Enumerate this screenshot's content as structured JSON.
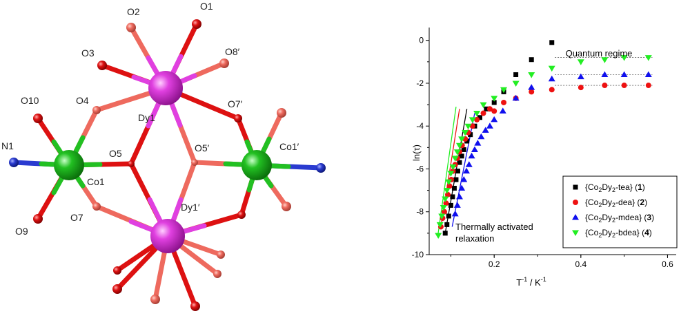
{
  "structure": {
    "labels": [
      {
        "id": "O1",
        "text": "O1"
      },
      {
        "id": "O2",
        "text": "O2"
      },
      {
        "id": "O3",
        "text": "O3"
      },
      {
        "id": "O8p",
        "text": "O8′"
      },
      {
        "id": "O10",
        "text": "O10"
      },
      {
        "id": "O4",
        "text": "O4"
      },
      {
        "id": "Dy1",
        "text": "Dy1"
      },
      {
        "id": "O7p",
        "text": "O7′"
      },
      {
        "id": "N1",
        "text": "N1"
      },
      {
        "id": "O5",
        "text": "O5"
      },
      {
        "id": "O5p",
        "text": "O5′"
      },
      {
        "id": "Co1p",
        "text": "Co1′"
      },
      {
        "id": "Co1",
        "text": "Co1"
      },
      {
        "id": "O7",
        "text": "O7"
      },
      {
        "id": "Dy1p",
        "text": "Dy1′"
      },
      {
        "id": "O9",
        "text": "O9"
      }
    ],
    "colors": {
      "dy": "#e040e0",
      "co": "#20c020",
      "o": "#dd1111",
      "n": "#2a3bd0"
    }
  },
  "chart_data": {
    "type": "scatter",
    "xlabel_main": "T",
    "xlabel_sup1": "-1",
    "xlabel_mid": " / K",
    "xlabel_sup2": "-1",
    "ylabel": "ln(τ)",
    "xlim": [
      0.05,
      0.62
    ],
    "ylim": [
      -10,
      0.6
    ],
    "xticks": [
      0.2,
      0.4,
      0.6
    ],
    "xtick_labels": [
      "0.2",
      "0.4",
      "0.6"
    ],
    "yticks": [
      0,
      -2,
      -4,
      -6,
      -8,
      -10
    ],
    "ytick_labels": [
      "0",
      "-2",
      "-4",
      "-6",
      "-8",
      "-10"
    ],
    "annotations": {
      "quantum": "Quantum regime",
      "thermal_line1": "Thermally activated",
      "thermal_line2": "relaxation"
    },
    "legend_position": "bottom-right",
    "series": [
      {
        "label_pre": "{Co",
        "label_sub1": "2",
        "label_mid": "Dy",
        "label_sub2": "2",
        "label_post": "-tea} (",
        "label_num": "1",
        "label_end": ")",
        "color": "#000000",
        "marker": "square",
        "x": [
          0.087,
          0.091,
          0.095,
          0.1,
          0.104,
          0.108,
          0.112,
          0.116,
          0.12,
          0.125,
          0.13,
          0.137,
          0.145,
          0.155,
          0.167,
          0.182,
          0.2,
          0.222,
          0.25,
          0.286,
          0.333
        ],
        "y": [
          -9.0,
          -8.6,
          -8.2,
          -7.7,
          -7.3,
          -6.9,
          -6.5,
          -6.1,
          -5.7,
          -5.4,
          -5.1,
          -4.7,
          -4.4,
          -4.0,
          -3.6,
          -3.2,
          -2.9,
          -2.4,
          -1.6,
          -0.9,
          -0.1
        ]
      },
      {
        "label_pre": "{Co",
        "label_sub1": "2",
        "label_mid": "Dy",
        "label_sub2": "2",
        "label_post": "-dea} (",
        "label_num": "2",
        "label_end": ")",
        "color": "#ee1111",
        "marker": "circle",
        "x": [
          0.077,
          0.081,
          0.085,
          0.089,
          0.093,
          0.097,
          0.101,
          0.105,
          0.11,
          0.115,
          0.12,
          0.126,
          0.133,
          0.14,
          0.15,
          0.16,
          0.175,
          0.19,
          0.2,
          0.222,
          0.25,
          0.286,
          0.333,
          0.4,
          0.455,
          0.5,
          0.556
        ],
        "y": [
          -8.7,
          -8.3,
          -8.0,
          -7.6,
          -7.2,
          -6.8,
          -6.5,
          -6.1,
          -5.8,
          -5.5,
          -5.2,
          -4.9,
          -4.6,
          -4.3,
          -4.0,
          -3.7,
          -3.4,
          -3.2,
          -3.3,
          -2.9,
          -2.7,
          -2.4,
          -2.3,
          -2.2,
          -2.1,
          -2.1,
          -2.1
        ]
      },
      {
        "label_pre": "{Co",
        "label_sub1": "2",
        "label_mid": "Dy",
        "label_sub2": "2",
        "label_post": "-mdea} (",
        "label_num": "3",
        "label_end": ")",
        "color": "#1010ee",
        "marker": "triangle-up",
        "x": [
          0.11,
          0.115,
          0.12,
          0.125,
          0.13,
          0.136,
          0.142,
          0.148,
          0.155,
          0.162,
          0.17,
          0.18,
          0.19,
          0.2,
          0.22,
          0.25,
          0.286,
          0.333,
          0.4,
          0.455,
          0.5,
          0.556
        ],
        "y": [
          -8.1,
          -7.7,
          -7.3,
          -6.9,
          -6.5,
          -6.1,
          -5.8,
          -5.4,
          -5.1,
          -4.8,
          -4.5,
          -4.2,
          -4.0,
          -3.7,
          -3.3,
          -2.7,
          -2.2,
          -1.8,
          -1.7,
          -1.6,
          -1.6,
          -1.6
        ]
      },
      {
        "label_pre": "{Co",
        "label_sub1": "2",
        "label_mid": "Dy",
        "label_sub2": "2",
        "label_post": "-bdea} (",
        "label_num": "4",
        "label_end": ")",
        "color": "#22ee22",
        "marker": "triangle-down",
        "x": [
          0.071,
          0.075,
          0.079,
          0.083,
          0.087,
          0.091,
          0.095,
          0.1,
          0.105,
          0.11,
          0.115,
          0.12,
          0.125,
          0.133,
          0.14,
          0.15,
          0.16,
          0.175,
          0.2,
          0.222,
          0.25,
          0.286,
          0.333,
          0.4,
          0.455,
          0.5,
          0.556
        ],
        "y": [
          -9.1,
          -8.6,
          -8.2,
          -7.8,
          -7.4,
          -7.0,
          -6.6,
          -6.2,
          -5.9,
          -5.5,
          -5.2,
          -4.9,
          -4.6,
          -4.3,
          -4.0,
          -3.7,
          -3.4,
          -3.0,
          -2.7,
          -2.3,
          -2.0,
          -1.6,
          -1.3,
          -1.0,
          -0.9,
          -0.8,
          -0.8
        ]
      }
    ],
    "fit_lines": [
      {
        "color": "#000000",
        "x": [
          0.087,
          0.137
        ],
        "y": [
          -9.0,
          -3.2
        ]
      },
      {
        "color": "#ee1111",
        "x": [
          0.077,
          0.12
        ],
        "y": [
          -8.7,
          -3.2
        ]
      },
      {
        "color": "#1010ee",
        "x": [
          0.103,
          0.155
        ],
        "y": [
          -8.7,
          -3.4
        ]
      },
      {
        "color": "#22ee22",
        "x": [
          0.07,
          0.112
        ],
        "y": [
          -9.1,
          -3.1
        ]
      }
    ],
    "plateau_lines": [
      {
        "y": -0.8,
        "x": [
          0.34,
          0.565
        ]
      },
      {
        "y": -1.6,
        "x": [
          0.34,
          0.565
        ]
      },
      {
        "y": -2.1,
        "x": [
          0.34,
          0.565
        ]
      }
    ]
  }
}
